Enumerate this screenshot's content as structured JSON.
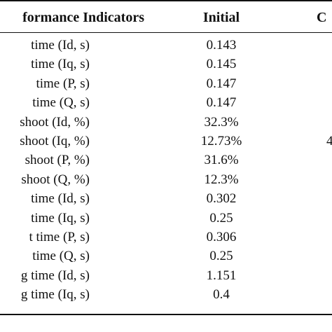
{
  "table": {
    "headers": {
      "indicator": "formance Indicators",
      "initial": "Initial",
      "next": "C"
    },
    "rows": [
      {
        "indicator": "time (Id, s)",
        "initial": "0.143",
        "next": ""
      },
      {
        "indicator": "time (Iq, s)",
        "initial": "0.145",
        "next": ""
      },
      {
        "indicator": "time (P, s)",
        "initial": "0.147",
        "next": ""
      },
      {
        "indicator": "time (Q, s)",
        "initial": "0.147",
        "next": ""
      },
      {
        "indicator": "shoot (Id, %)",
        "initial": "32.3%",
        "next": ""
      },
      {
        "indicator": "shoot (Iq, %)",
        "initial": "12.73%",
        "next": "4"
      },
      {
        "indicator": "shoot (P, %)",
        "initial": "31.6%",
        "next": ""
      },
      {
        "indicator": "shoot (Q, %)",
        "initial": "12.3%",
        "next": ""
      },
      {
        "indicator": "time (Id, s)",
        "initial": "0.302",
        "next": ""
      },
      {
        "indicator": "time (Iq, s)",
        "initial": "0.25",
        "next": ""
      },
      {
        "indicator": "t time (P, s)",
        "initial": "0.306",
        "next": ""
      },
      {
        "indicator": "time (Q, s)",
        "initial": "0.25",
        "next": ""
      },
      {
        "indicator": "g time (Id, s)",
        "initial": "1.151",
        "next": ""
      },
      {
        "indicator": "g time (Iq, s)",
        "initial": "0.4",
        "next": ""
      }
    ]
  }
}
